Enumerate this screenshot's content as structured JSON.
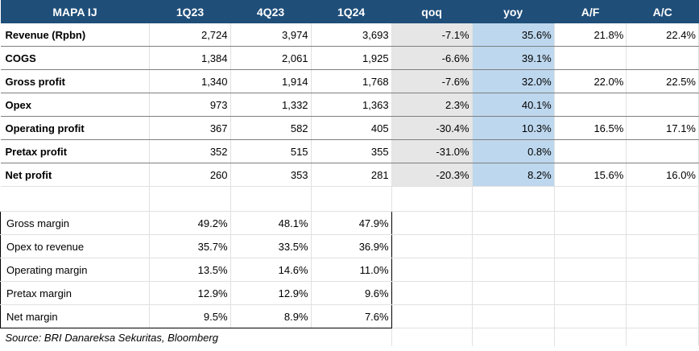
{
  "header": [
    "MAPA IJ",
    "1Q23",
    "4Q23",
    "1Q24",
    "qoq",
    "yoy",
    "A/F",
    "A/C"
  ],
  "main_rows": [
    {
      "label": "Revenue (Rpbn)",
      "q1": "2,724",
      "q2": "3,974",
      "q3": "3,693",
      "qoq": "-7.1%",
      "yoy": "35.6%",
      "af": "21.8%",
      "ac": "22.4%"
    },
    {
      "label": "COGS",
      "q1": "1,384",
      "q2": "2,061",
      "q3": "1,925",
      "qoq": "-6.6%",
      "yoy": "39.1%",
      "af": "",
      "ac": ""
    },
    {
      "label": "Gross profit",
      "q1": "1,340",
      "q2": "1,914",
      "q3": "1,768",
      "qoq": "-7.6%",
      "yoy": "32.0%",
      "af": "22.0%",
      "ac": "22.5%"
    },
    {
      "label": "Opex",
      "q1": "973",
      "q2": "1,332",
      "q3": "1,363",
      "qoq": "2.3%",
      "yoy": "40.1%",
      "af": "",
      "ac": ""
    },
    {
      "label": "Operating profit",
      "q1": "367",
      "q2": "582",
      "q3": "405",
      "qoq": "-30.4%",
      "yoy": "10.3%",
      "af": "16.5%",
      "ac": "17.1%"
    },
    {
      "label": "Pretax profit",
      "q1": "352",
      "q2": "515",
      "q3": "355",
      "qoq": "-31.0%",
      "yoy": "0.8%",
      "af": "",
      "ac": ""
    },
    {
      "label": "Net profit",
      "q1": "260",
      "q2": "353",
      "q3": "281",
      "qoq": "-20.3%",
      "yoy": "8.2%",
      "af": "15.6%",
      "ac": "16.0%"
    }
  ],
  "margin_rows": [
    {
      "label": "Gross margin",
      "q1": "49.2%",
      "q2": "48.1%",
      "q3": "47.9%"
    },
    {
      "label": "Opex to revenue",
      "q1": "35.7%",
      "q2": "33.5%",
      "q3": "36.9%"
    },
    {
      "label": "Operating margin",
      "q1": "13.5%",
      "q2": "14.6%",
      "q3": "11.0%"
    },
    {
      "label": "Pretax margin",
      "q1": "12.9%",
      "q2": "12.9%",
      "q3": "9.6%"
    },
    {
      "label": "Net margin",
      "q1": "9.5%",
      "q2": "8.9%",
      "q3": "7.6%"
    }
  ],
  "source": "Source: BRI Danareksa Sekuritas, Bloomberg",
  "colors": {
    "header_bg": "#1f4e79",
    "qoq_bg": "#e6e6e6",
    "yoy_bg": "#bdd7ee"
  }
}
